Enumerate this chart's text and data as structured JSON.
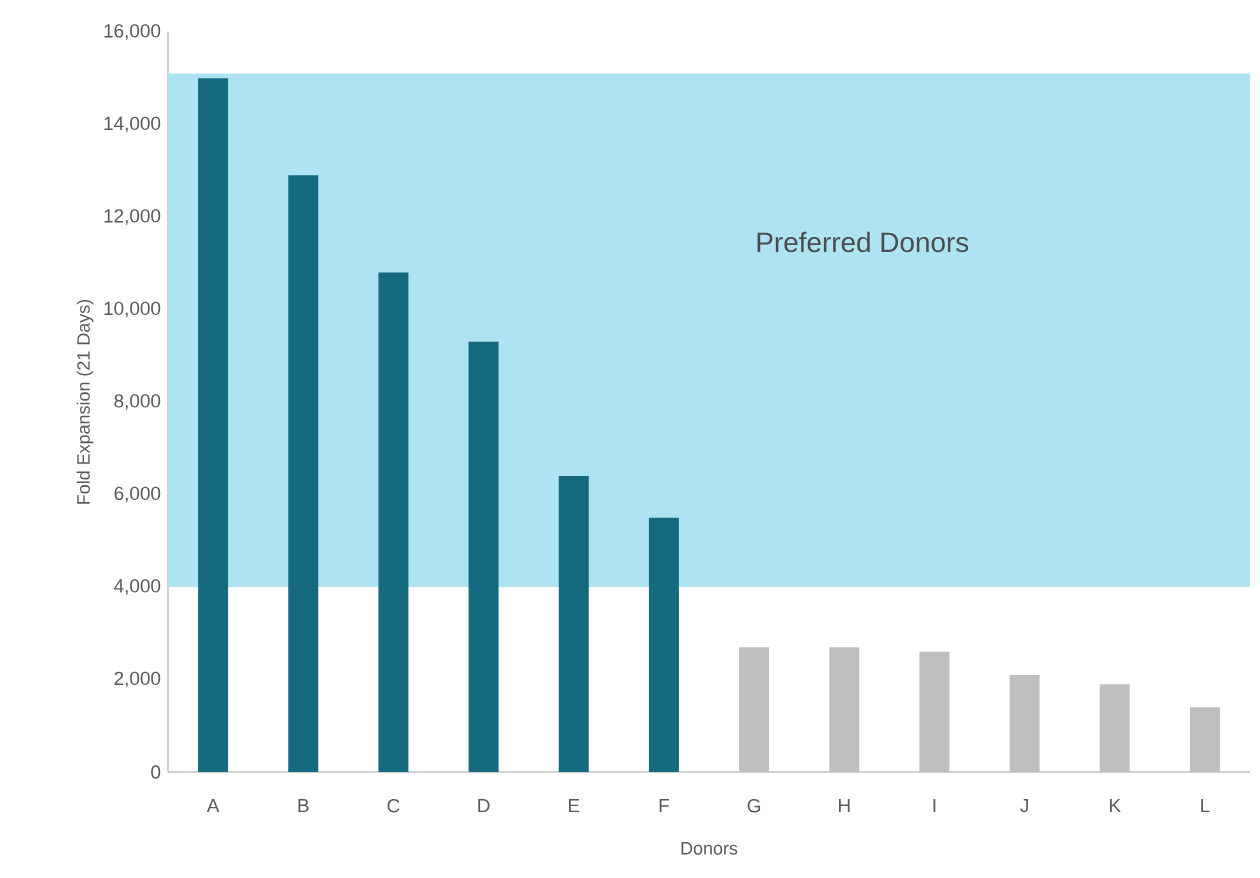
{
  "chart_data": {
    "type": "bar",
    "xlabel": "Donors",
    "ylabel": "Fold Expansion (21 Days)",
    "categories": [
      "A",
      "B",
      "C",
      "D",
      "E",
      "F",
      "G",
      "H",
      "I",
      "J",
      "K",
      "L"
    ],
    "values": [
      15000,
      12900,
      10800,
      9300,
      6400,
      5500,
      2700,
      2700,
      2600,
      2100,
      1900,
      1400
    ],
    "colors": [
      "#156a80",
      "#156a80",
      "#156a80",
      "#156a80",
      "#156a80",
      "#156a80",
      "#bfbfbf",
      "#bfbfbf",
      "#bfbfbf",
      "#bfbfbf",
      "#bfbfbf",
      "#bfbfbf"
    ],
    "ylim": [
      0,
      16000
    ],
    "yticks": [
      {
        "value": 0,
        "label": "0"
      },
      {
        "value": 2000,
        "label": "2,000"
      },
      {
        "value": 4000,
        "label": "4,000"
      },
      {
        "value": 6000,
        "label": "6,000"
      },
      {
        "value": 8000,
        "label": "8,000"
      },
      {
        "value": 10000,
        "label": "10,000"
      },
      {
        "value": 12000,
        "label": "12,000"
      },
      {
        "value": 14000,
        "label": "14,000"
      },
      {
        "value": 16000,
        "label": "16,000"
      }
    ],
    "bands": [
      {
        "axis": "y",
        "from": 4000,
        "to": 15100,
        "label": "Preferred Donors",
        "color": "#aee3f1"
      }
    ],
    "grid": false
  }
}
